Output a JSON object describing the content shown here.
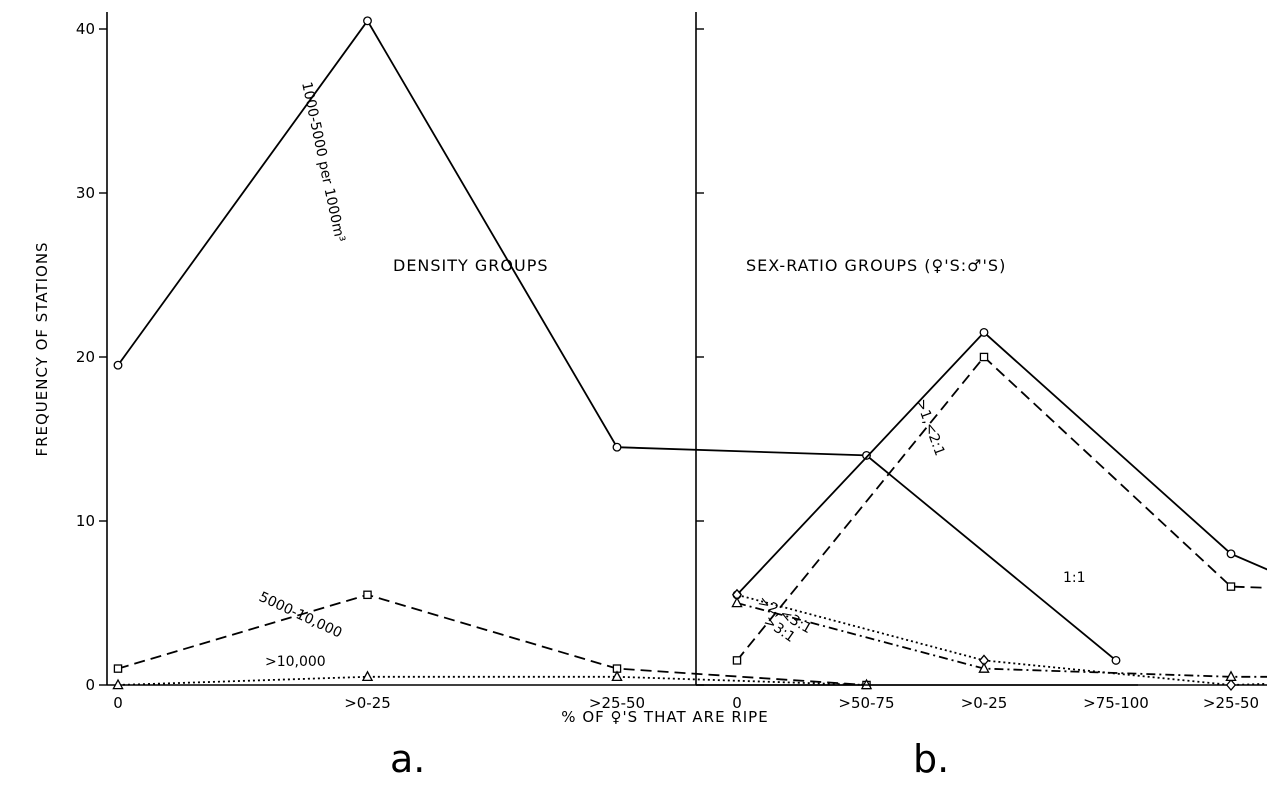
{
  "chart_data": [
    {
      "type": "line",
      "panel_label": "a.",
      "title": "DENSITY GROUPS",
      "ylabel": "FREQUENCY OF STATIONS",
      "xlabel": "% OF ♀'S THAT ARE RIPE",
      "categories": [
        "0",
        ">0-25",
        ">25-50",
        ">50-75",
        ">75-100"
      ],
      "ylim": [
        0,
        42
      ],
      "yticks": [
        0,
        10,
        20,
        30,
        40
      ],
      "series": [
        {
          "name": "1000-5000 per 1000m³",
          "marker": "circle",
          "dash": "solid",
          "values": [
            19.5,
            40.5,
            14.5,
            14,
            1.5
          ]
        },
        {
          "name": "5000-10,000",
          "marker": "square",
          "dash": "dashed",
          "values": [
            1,
            5.5,
            1,
            0,
            null
          ]
        },
        {
          "name": ">10,000",
          "marker": "triangle",
          "dash": "dotted",
          "values": [
            0,
            0.5,
            0.5,
            0,
            null
          ]
        }
      ]
    },
    {
      "type": "line",
      "panel_label": "b.",
      "title": "SEX-RATIO GROUPS  (♀'S:♂'S)",
      "ylabel": "",
      "xlabel": "",
      "categories": [
        "0",
        ">0-25",
        ">25-50",
        ">50-75",
        ">75-100"
      ],
      "ylim": [
        0,
        42
      ],
      "yticks": [
        0,
        10,
        20,
        30,
        40
      ],
      "series": [
        {
          "name": ">1,<2:1",
          "marker": "circle",
          "dash": "solid",
          "values": [
            5.5,
            21.5,
            8,
            1.5,
            0.5
          ]
        },
        {
          "name": "1:1",
          "marker": "square",
          "dash": "dashed",
          "values": [
            1.5,
            20,
            6,
            5.5,
            0.5
          ]
        },
        {
          "name": ">2,<3:1",
          "marker": "diamond",
          "dash": "dotted",
          "values": [
            5.5,
            1.5,
            0,
            0.5,
            0
          ]
        },
        {
          "name": ">3:1",
          "marker": "triangle",
          "dash": "dashdot",
          "values": [
            5,
            1,
            0.5,
            0.5,
            0.5
          ]
        }
      ]
    }
  ]
}
